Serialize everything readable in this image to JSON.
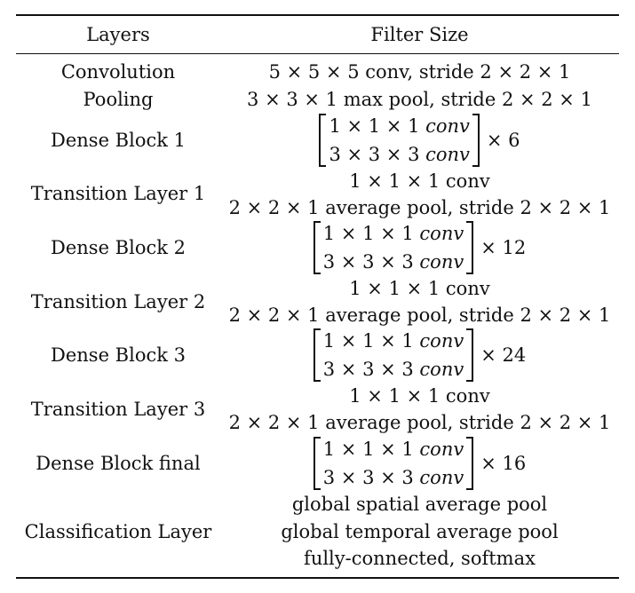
{
  "header": {
    "col_layers": "Layers",
    "col_filter": "Filter Size"
  },
  "rows": [
    {
      "layer": "Convolution",
      "filter": [
        "5 × 5 × 5 conv, stride 2 × 2 × 1"
      ]
    },
    {
      "layer": "Pooling",
      "filter": [
        "3 × 3 × 1 max pool, stride 2 × 2 × 1"
      ]
    },
    {
      "layer": "Dense Block 1",
      "matrix": {
        "dims1": "1 × 1 × 1 ",
        "dims2": "3 × 3 × 3 ",
        "op": "conv",
        "multiplier": "× 6"
      }
    },
    {
      "layer": "Transition Layer 1",
      "filter": [
        "1 × 1 × 1 conv",
        "2 × 2 × 1 average pool, stride 2 × 2 × 1"
      ]
    },
    {
      "layer": "Dense Block 2",
      "matrix": {
        "dims1": "1 × 1 × 1 ",
        "dims2": "3 × 3 × 3 ",
        "op": "conv",
        "multiplier": "× 12"
      }
    },
    {
      "layer": "Transition Layer 2",
      "filter": [
        "1 × 1 × 1 conv",
        "2 × 2 × 1 average pool, stride 2 × 2 × 1"
      ]
    },
    {
      "layer": "Dense Block 3",
      "matrix": {
        "dims1": "1 × 1 × 1 ",
        "dims2": "3 × 3 × 3 ",
        "op": "conv",
        "multiplier": "× 24"
      }
    },
    {
      "layer": "Transition Layer 3",
      "filter": [
        "1 × 1 × 1 conv",
        "2 × 2 × 1 average pool, stride 2 × 2 × 1"
      ]
    },
    {
      "layer": "Dense Block final",
      "matrix": {
        "dims1": "1 × 1 × 1 ",
        "dims2": "3 × 3 × 3 ",
        "op": "conv",
        "multiplier": "× 16"
      }
    },
    {
      "layer": "Classification Layer",
      "filter": [
        "global spatial average pool",
        "global temporal average pool",
        "fully-connected, softmax"
      ]
    }
  ]
}
